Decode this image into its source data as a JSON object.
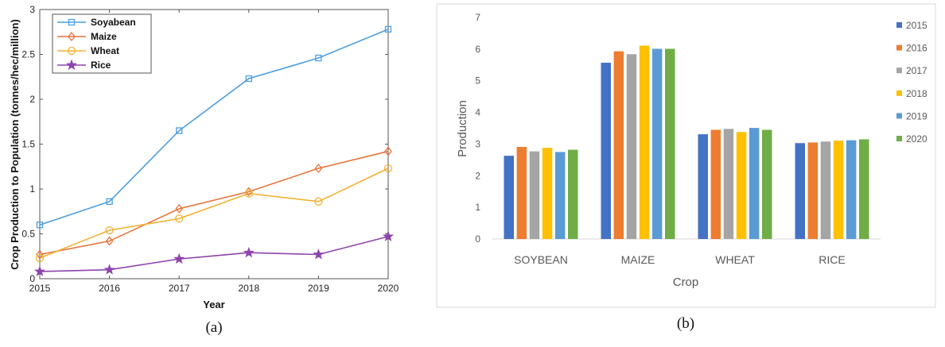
{
  "captions": {
    "a": "(a)",
    "b": "(b)"
  },
  "colors": {
    "soyabean": "#4d9ee0",
    "maize": "#e8743b",
    "wheat": "#f2b134",
    "rice": "#8e44ad",
    "y2015": "#4472c4",
    "y2016": "#ed7d31",
    "y2017": "#a5a5a5",
    "y2018": "#ffc000",
    "y2019": "#5b9bd5",
    "y2020": "#70ad47"
  },
  "chart_data": [
    {
      "type": "line",
      "xlabel": "Year",
      "ylabel": "Crop Production to Population (tonnes/hec/million)",
      "x": [
        2015,
        2016,
        2017,
        2018,
        2019,
        2020
      ],
      "x_ticks": [
        "2015",
        "2016",
        "2017",
        "2018",
        "2019",
        "2020"
      ],
      "xlim": [
        2015,
        2020
      ],
      "ylim": [
        0,
        3
      ],
      "y_ticks": [
        "0",
        "0.5",
        "1",
        "1.5",
        "2",
        "2.5",
        "3"
      ],
      "grid": false,
      "legend_position": "top-left",
      "series": [
        {
          "name": "Soyabean",
          "values": [
            0.6,
            0.86,
            1.65,
            2.23,
            2.46,
            2.78
          ],
          "color": "#4d9ee0",
          "marker": "square"
        },
        {
          "name": "Maize",
          "values": [
            0.27,
            0.42,
            0.78,
            0.97,
            1.23,
            1.42
          ],
          "color": "#e8743b",
          "marker": "diamond"
        },
        {
          "name": "Wheat",
          "values": [
            0.23,
            0.54,
            0.67,
            0.95,
            0.86,
            1.23
          ],
          "color": "#f2b134",
          "marker": "circle"
        },
        {
          "name": "Rice",
          "values": [
            0.08,
            0.1,
            0.22,
            0.29,
            0.27,
            0.47
          ],
          "color": "#8e44ad",
          "marker": "star"
        }
      ]
    },
    {
      "type": "bar",
      "xlabel": "Crop",
      "ylabel": "Production",
      "categories": [
        "SOYBEAN",
        "MAIZE",
        "WHEAT",
        "RICE"
      ],
      "ylim": [
        0,
        7
      ],
      "y_ticks": [
        "0",
        "1",
        "2",
        "3",
        "4",
        "5",
        "6",
        "7"
      ],
      "grid": false,
      "legend_position": "right",
      "series": [
        {
          "name": "2015",
          "values": [
            2.63,
            5.57,
            3.31,
            3.03
          ],
          "color": "#4472c4"
        },
        {
          "name": "2016",
          "values": [
            2.91,
            5.93,
            3.45,
            3.05
          ],
          "color": "#ed7d31"
        },
        {
          "name": "2017",
          "values": [
            2.77,
            5.84,
            3.48,
            3.08
          ],
          "color": "#a5a5a5"
        },
        {
          "name": "2018",
          "values": [
            2.88,
            6.11,
            3.38,
            3.11
          ],
          "color": "#ffc000"
        },
        {
          "name": "2019",
          "values": [
            2.75,
            6.01,
            3.51,
            3.12
          ],
          "color": "#5b9bd5"
        },
        {
          "name": "2020",
          "values": [
            2.82,
            6.01,
            3.45,
            3.15
          ],
          "color": "#70ad47"
        }
      ]
    }
  ]
}
